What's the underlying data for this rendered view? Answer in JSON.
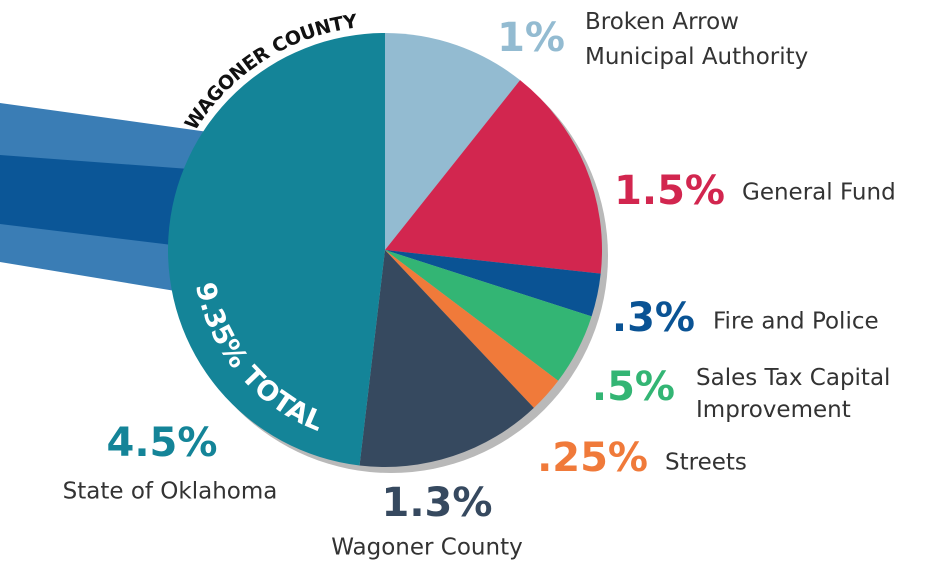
{
  "chart_data": {
    "type": "pie",
    "categories": [
      "Broken Arrow Municipal Authority",
      "General Fund",
      "Fire and Police",
      "Sales Tax Capital Improvement",
      "Streets",
      "Wagoner County",
      "State of Oklahoma"
    ],
    "values": [
      1,
      1.5,
      0.3,
      0.5,
      0.25,
      1.3,
      4.5
    ],
    "value_labels": [
      "1%",
      "1.5%",
      ".3%",
      ".5%",
      ".25%",
      "1.3%",
      "4.5%"
    ],
    "colors": [
      "#93bbd1",
      "#d2264f",
      "#0a5394",
      "#33b574",
      "#f07a3a",
      "#36495f",
      "#148498"
    ],
    "annotations": [
      "WAGONER COUNTY",
      "9.35% TOTAL"
    ]
  }
}
